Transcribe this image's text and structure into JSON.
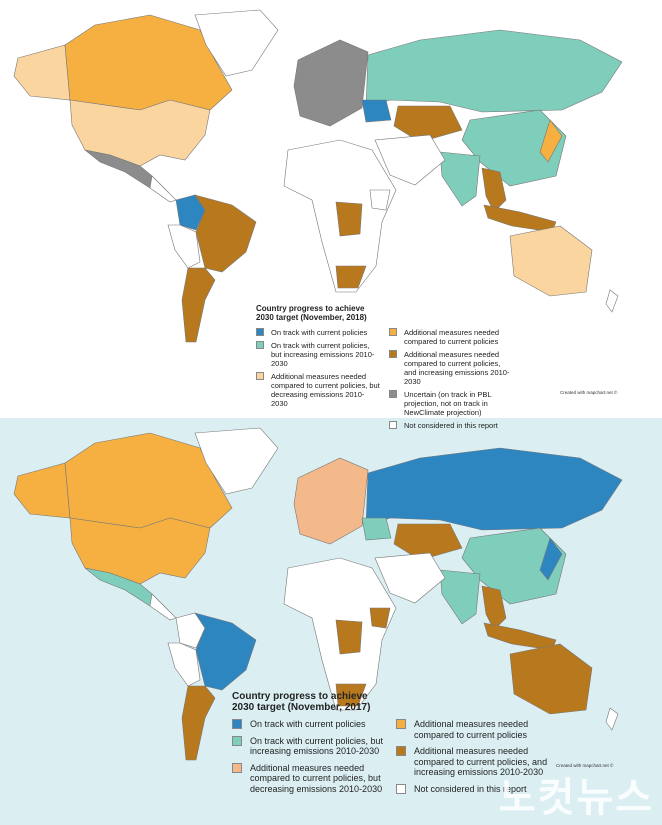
{
  "maps": [
    {
      "legend": {
        "title": "Country progress to achieve 2030 target (November, 2018)",
        "columns": [
          [
            {
              "label": "On track with current policies",
              "color": "#2e86c1"
            },
            {
              "label": "On track with current policies, but increasing emissions 2010-2030",
              "color": "#7fcdbb"
            },
            {
              "label": "Additional measures needed compared to current policies, but decreasing emissions 2010-2030",
              "color": "#fad59f"
            }
          ],
          [
            {
              "label": "Additional measures needed compared to current policies",
              "color": "#f5b041"
            },
            {
              "label": "Additional measures needed compared to current policies, and increasing emissions 2010-2030",
              "color": "#b8791e"
            },
            {
              "label": "Uncertain (on track in PBL projection, not on track in NewClimate projection)",
              "color": "#8c8c8c"
            },
            {
              "label": "Not considered in this report",
              "color": "#ffffff"
            }
          ]
        ]
      },
      "credit": "Created with mapchart.net ©"
    },
    {
      "legend": {
        "title": "Country progress to achieve 2030 target (November, 2017)",
        "columns": [
          [
            {
              "label": "On track with current policies",
              "color": "#2e86c1"
            },
            {
              "label": "On track with current policies, but increasing emissions 2010-2030",
              "color": "#7fcdbb"
            },
            {
              "label": "Additional measures needed compared to current policies, but decreasing emissions 2010-2030",
              "color": "#f4b98a"
            }
          ],
          [
            {
              "label": "Additional measures needed compared to current policies",
              "color": "#f5b041"
            },
            {
              "label": "Additional measures needed compared to current policies, and increasing emissions 2010-2030",
              "color": "#b8791e"
            },
            {
              "label": "Not considered in this report",
              "color": "#ffffff"
            }
          ]
        ]
      },
      "credit": "Created with mapchart.net ©"
    }
  ],
  "watermark": "노컷뉴스"
}
